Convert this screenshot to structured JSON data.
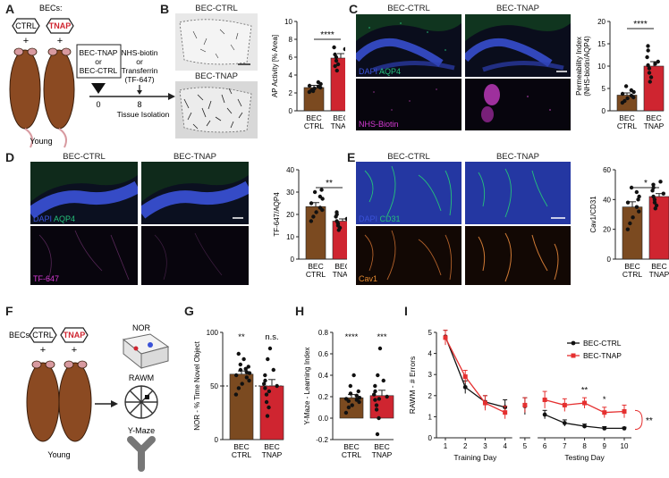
{
  "colors": {
    "ctrl": "#7b4a20",
    "tnap": "#cf2530",
    "dapi": "#3a52d8",
    "aqp4": "#25c07a",
    "magenta": "#d43ad3",
    "cav1": "#e58a30",
    "dark": "#070914"
  },
  "panel_a": {
    "label": "A",
    "becs": "BECs:",
    "ctrl": "CTRL",
    "tnap": "TNAP",
    "plus": "+",
    "age": "Young",
    "box_line1": "BEC-TNAP",
    "box_line2": "or",
    "box_line3": "BEC-CTRL",
    "inj_lines": [
      "NHS-biotin",
      "or",
      "Transferrin",
      "(TF-647)"
    ],
    "day0": "0",
    "day8": "8",
    "tissue": "Tissue Isolation"
  },
  "panel_b": {
    "label": "B",
    "img1": "BEC-CTRL",
    "img2": "BEC-TNAP",
    "sig": "****"
  },
  "panel_c": {
    "label": "C",
    "col1": "BEC-CTRL",
    "col2": "BEC-TNAP",
    "stain_dapi": "DAPI",
    "stain_aqp4": "AQP4",
    "stain_nhs": "NHS-Biotin",
    "sig": "****"
  },
  "panel_d": {
    "label": "D",
    "col1": "BEC-CTRL",
    "col2": "BEC-TNAP",
    "stain_dapi": "DAPI",
    "stain_aqp4": "AQP4",
    "stain_tf": "TF-647",
    "sig": "**"
  },
  "panel_e": {
    "label": "E",
    "col1": "BEC-CTRL",
    "col2": "BEC-TNAP",
    "stain_dapi": "DAPI",
    "stain_cd31": "CD31",
    "stain_cav1": "Cav1",
    "sig": "*"
  },
  "panel_f": {
    "label": "F",
    "becs": "BECs:",
    "ctrl": "CTRL",
    "tnap": "TNAP",
    "plus": "+",
    "age": "Young",
    "nor": "NOR",
    "rawm": "RAWM",
    "ymaze": "Y-Maze"
  },
  "panel_g": {
    "label": "G",
    "sig1": "**",
    "sig2": "n.s."
  },
  "panel_h": {
    "label": "H",
    "sig1": "****",
    "sig2": "***"
  },
  "panel_i": {
    "label": "I",
    "sig_day8": "**",
    "sig_day9": "*",
    "sig_overall": "**"
  },
  "chart_data": [
    {
      "id": "B",
      "type": "bar",
      "categories": [
        "BEC CTRL",
        "BEC TNAP"
      ],
      "values": [
        2.6,
        5.9
      ],
      "errors": [
        0.25,
        0.5
      ],
      "ylabel": "AP Activity [% Area]",
      "ylim": [
        0,
        10
      ],
      "yticks": [
        0,
        2,
        4,
        6,
        8,
        10
      ],
      "points": [
        [
          2.1,
          2.3,
          2.5,
          2.6,
          2.7,
          2.8,
          3.0,
          3.2,
          2.2
        ],
        [
          4.5,
          5.2,
          5.6,
          6.0,
          6.3,
          6.9,
          7.1,
          5.0
        ]
      ]
    },
    {
      "id": "C",
      "type": "bar",
      "categories": [
        "BEC CTRL",
        "BEC TNAP"
      ],
      "values": [
        3.5,
        10.0
      ],
      "errors": [
        0.5,
        1.0
      ],
      "ylabel": "Permeability Index (NHS-biotin/AQP4)",
      "ylim": [
        0,
        20
      ],
      "yticks": [
        0,
        5,
        10,
        15,
        20
      ],
      "points": [
        [
          1.8,
          2.2,
          2.8,
          3.0,
          3.4,
          3.8,
          4.2,
          4.6,
          5.5
        ],
        [
          6.5,
          7.5,
          8.5,
          9.5,
          10.2,
          11.0,
          12.0,
          13.5,
          14.5,
          10.5
        ]
      ]
    },
    {
      "id": "D",
      "type": "bar",
      "categories": [
        "BEC CTRL",
        "BEC TNAP"
      ],
      "values": [
        23.5,
        17.0
      ],
      "errors": [
        1.8,
        1.0
      ],
      "ylabel": "TF-647/AQP4",
      "ylim": [
        0,
        40
      ],
      "yticks": [
        0,
        10,
        20,
        30,
        40
      ],
      "points": [
        [
          17,
          19,
          21,
          22,
          23,
          25,
          27,
          28,
          30,
          31
        ],
        [
          13,
          14,
          15,
          16,
          17,
          18,
          19,
          20,
          21
        ]
      ]
    },
    {
      "id": "E",
      "type": "bar",
      "categories": [
        "BEC CTRL",
        "BEC TNAP"
      ],
      "values": [
        35,
        42
      ],
      "errors": [
        3.5,
        2.0
      ],
      "ylabel": "Cav1/CD31",
      "ylim": [
        0,
        60
      ],
      "yticks": [
        0,
        20,
        40,
        60
      ],
      "points": [
        [
          20,
          24,
          28,
          32,
          35,
          38,
          42,
          45,
          48,
          40
        ],
        [
          34,
          36,
          38,
          40,
          42,
          44,
          46,
          48,
          50,
          52
        ]
      ]
    },
    {
      "id": "G",
      "type": "bar",
      "categories": [
        "BEC CTRL",
        "BEC TNAP"
      ],
      "values": [
        61,
        50
      ],
      "errors": [
        3.0,
        6.0
      ],
      "ylabel": "NOR - % Time Novel Object",
      "ylim": [
        0,
        100
      ],
      "yticks": [
        0,
        50,
        100
      ],
      "reference_y": 50,
      "points": [
        [
          42,
          48,
          52,
          55,
          58,
          60,
          62,
          63,
          65,
          68,
          70,
          75,
          80,
          66
        ],
        [
          22,
          30,
          35,
          42,
          48,
          50,
          52,
          55,
          60,
          65,
          75,
          85,
          45
        ]
      ]
    },
    {
      "id": "H",
      "type": "bar",
      "categories": [
        "BEC CTRL",
        "BEC TNAP"
      ],
      "values": [
        0.19,
        0.21
      ],
      "errors": [
        0.03,
        0.05
      ],
      "ylabel": "Y-Maze - Learning Index",
      "ylim": [
        -0.2,
        0.8
      ],
      "yticks": [
        -0.2,
        0.0,
        0.2,
        0.4,
        0.6,
        0.8
      ],
      "points": [
        [
          0.05,
          0.1,
          0.12,
          0.15,
          0.17,
          0.18,
          0.19,
          0.21,
          0.23,
          0.25,
          0.3,
          0.4,
          0.16
        ],
        [
          -0.15,
          0.0,
          0.08,
          0.12,
          0.17,
          0.2,
          0.22,
          0.25,
          0.3,
          0.35,
          0.4,
          0.65,
          0.18
        ]
      ]
    },
    {
      "id": "I",
      "type": "line",
      "xlabel_training": "Training Day",
      "xlabel_testing": "Testing Day",
      "ylabel": "RAWM - # Errors",
      "ylim": [
        0,
        5
      ],
      "yticks": [
        0,
        1,
        2,
        3,
        4,
        5
      ],
      "xticks": [
        1,
        2,
        3,
        4,
        5,
        6,
        7,
        8,
        9,
        10
      ],
      "series": [
        {
          "name": "BEC-CTRL",
          "color": "#111111",
          "x": [
            1,
            2,
            3,
            4,
            5,
            6,
            7,
            8,
            9,
            10
          ],
          "y": [
            4.8,
            2.4,
            1.7,
            1.45,
            1.5,
            1.1,
            0.7,
            0.55,
            0.45,
            0.45
          ],
          "err": [
            0.3,
            0.3,
            0.3,
            0.35,
            0.4,
            0.2,
            0.15,
            0.1,
            0.08,
            0.05
          ]
        },
        {
          "name": "BEC-TNAP",
          "color": "#e53030",
          "x": [
            1,
            2,
            3,
            4,
            5,
            6,
            7,
            8,
            9,
            10
          ],
          "y": [
            4.75,
            2.9,
            1.65,
            1.2,
            1.55,
            1.8,
            1.55,
            1.65,
            1.2,
            1.25
          ],
          "err": [
            0.35,
            0.3,
            0.35,
            0.3,
            0.35,
            0.4,
            0.3,
            0.25,
            0.25,
            0.3
          ]
        }
      ]
    }
  ]
}
